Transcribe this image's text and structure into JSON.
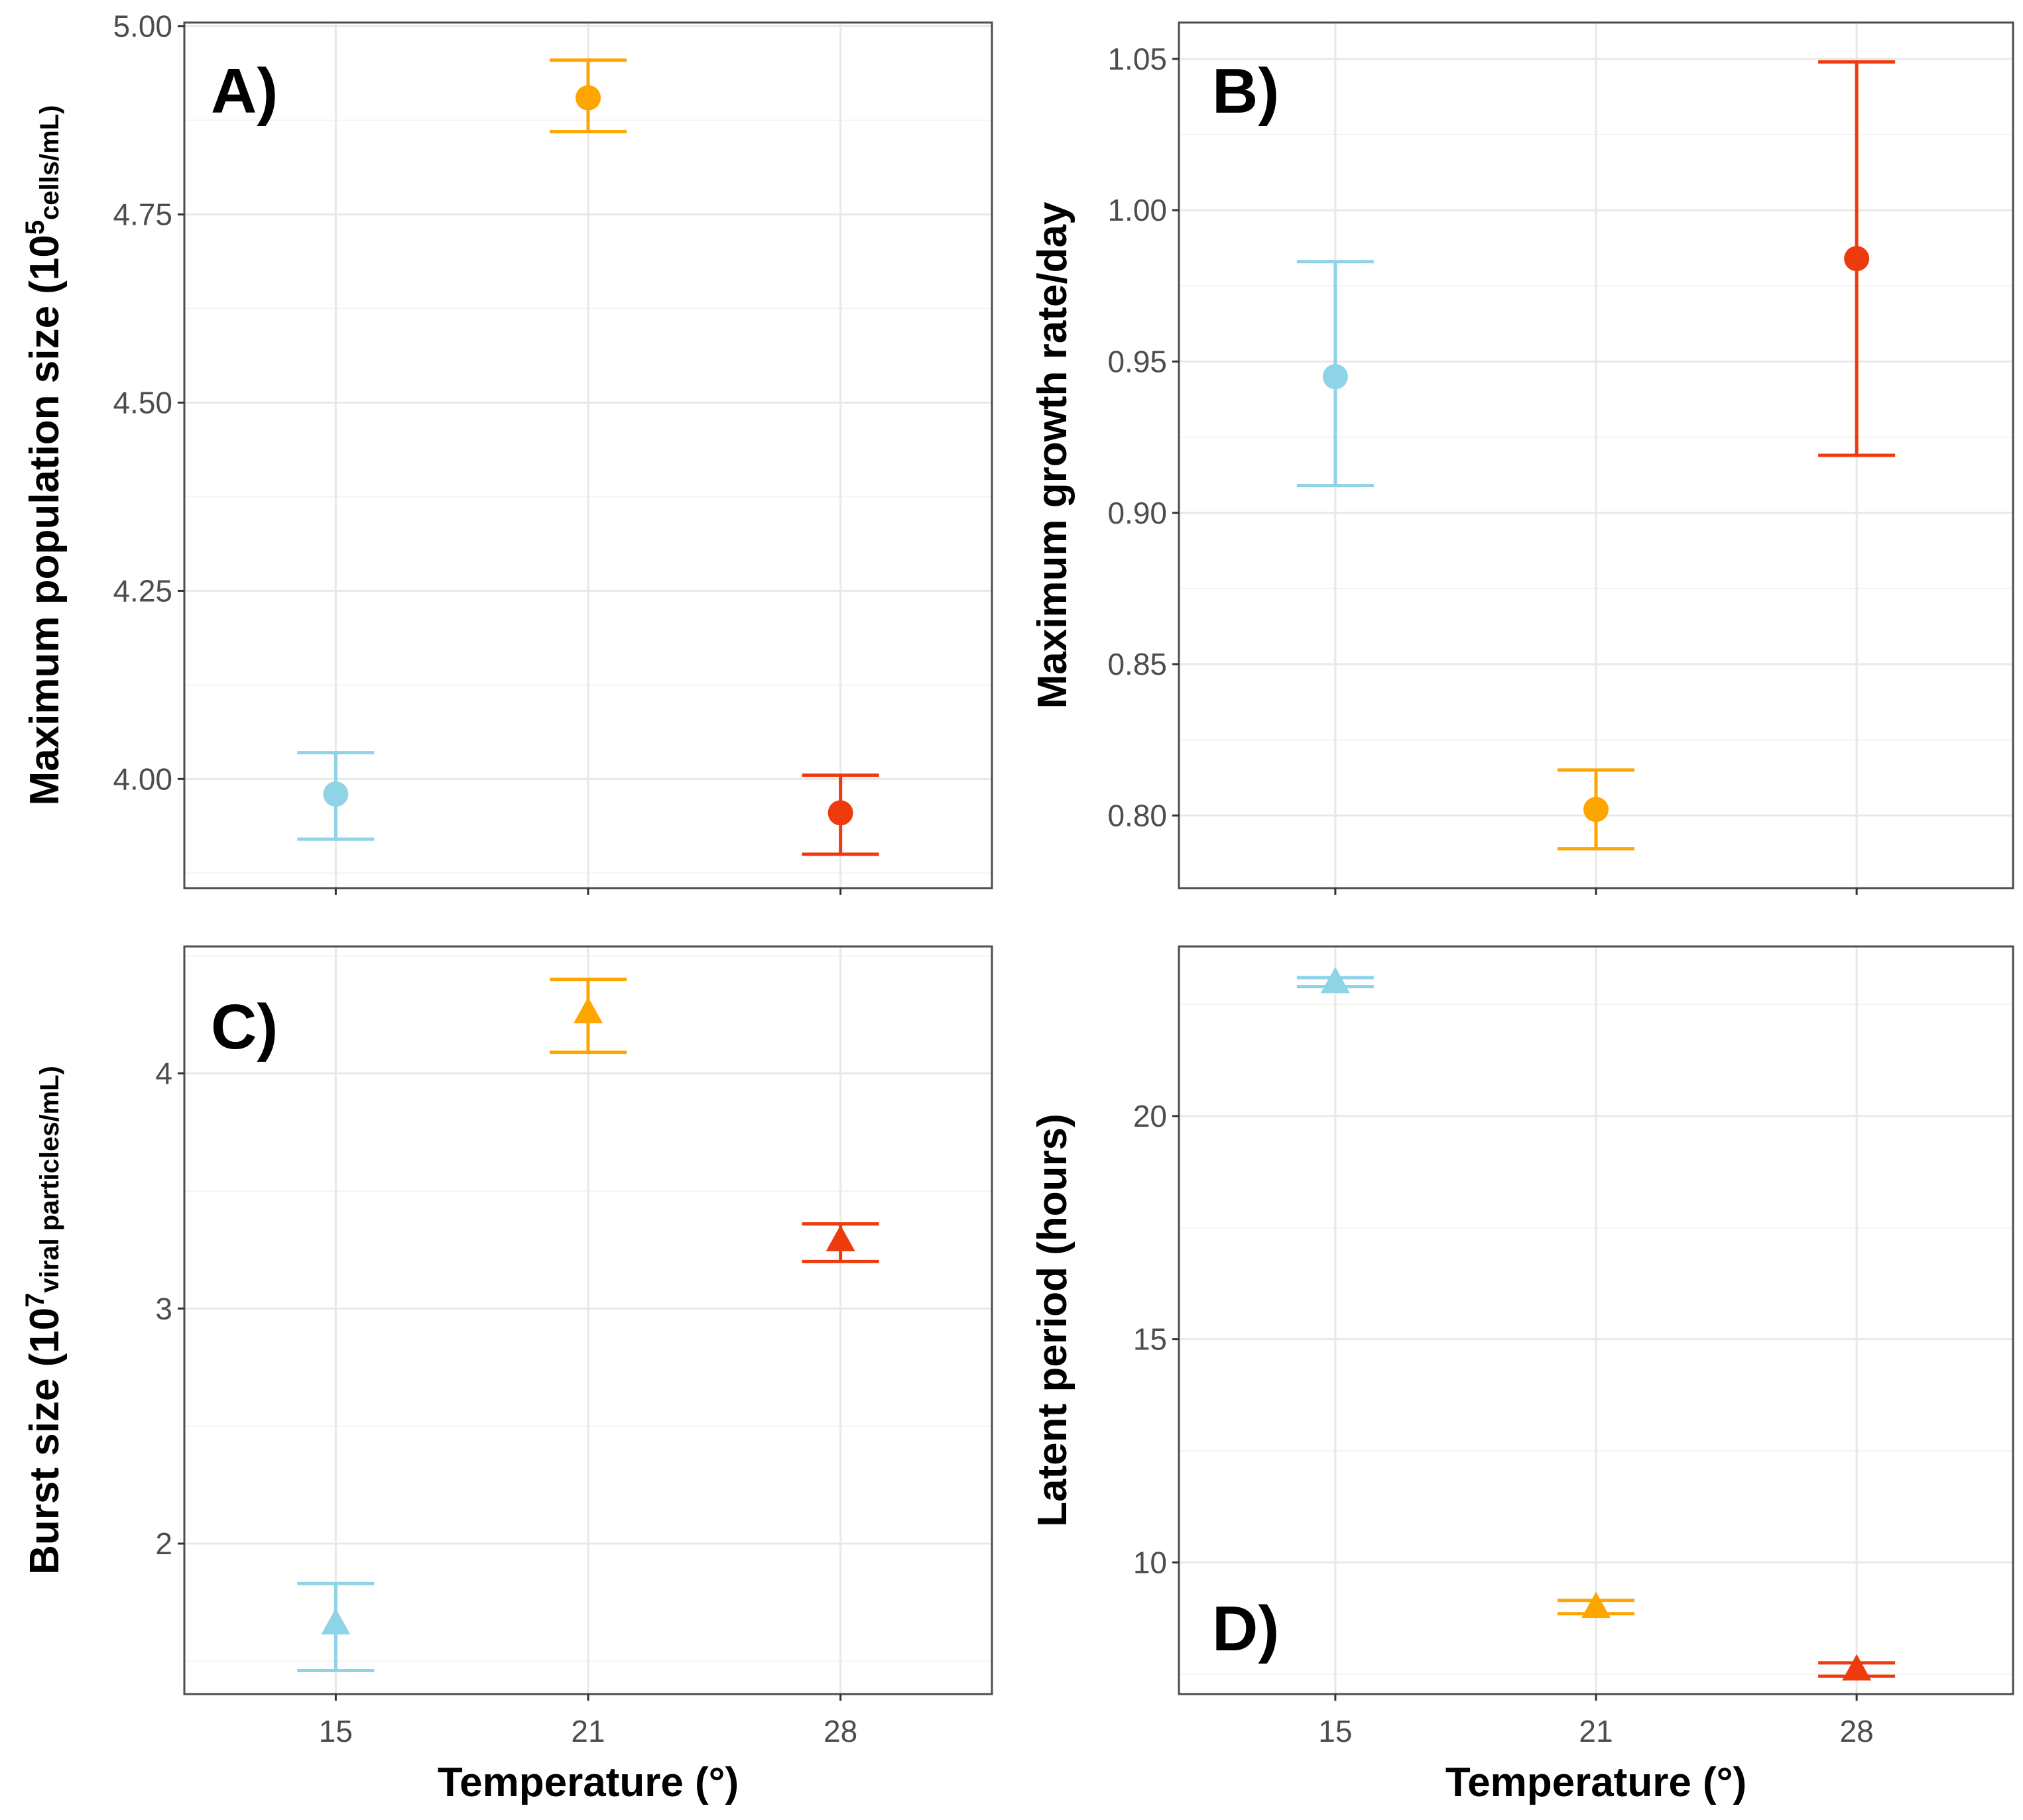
{
  "figure": {
    "colors": {
      "15": "#8FD3E6",
      "21": "#FFA500",
      "28": "#EE3B0E"
    },
    "grid_major": "#e8e8e8",
    "grid_minor": "#f3f3f3",
    "border": "#4d4d4d"
  },
  "chart_data": [
    {
      "type": "scatter",
      "panel_label": "A)",
      "marker": "circle",
      "title": "",
      "xlabel": "",
      "ylabel": {
        "pre": "Maximum population size (10",
        "sup": "5",
        "post": "cells/mL)"
      },
      "categories": [
        "15",
        "21",
        "28"
      ],
      "values": [
        3.98,
        4.905,
        3.955
      ],
      "lower": [
        3.92,
        4.86,
        3.9
      ],
      "upper": [
        4.035,
        4.955,
        4.005
      ],
      "yticks": [
        "4.00",
        "4.25",
        "4.50",
        "4.75",
        "5.00"
      ],
      "ylim": [
        3.855,
        5.005
      ],
      "grid": true
    },
    {
      "type": "scatter",
      "panel_label": "B)",
      "marker": "circle",
      "title": "",
      "xlabel": "",
      "ylabel": {
        "pre": "Maximum growth rate/day",
        "sup": "",
        "post": ""
      },
      "categories": [
        "15",
        "21",
        "28"
      ],
      "values": [
        0.945,
        0.802,
        0.984
      ],
      "lower": [
        0.909,
        0.789,
        0.919
      ],
      "upper": [
        0.983,
        0.815,
        1.049
      ],
      "yticks": [
        "0.80",
        "0.85",
        "0.90",
        "0.95",
        "1.00",
        "1.05"
      ],
      "ylim": [
        0.776,
        1.062
      ],
      "grid": true
    },
    {
      "type": "scatter",
      "panel_label": "C)",
      "marker": "triangle",
      "title": "",
      "xlabel": "Temperature (°)",
      "ylabel": {
        "pre": "Burst size (10",
        "sup": "7",
        "post": "viral particles/mL)"
      },
      "categories": [
        "15",
        "21",
        "28"
      ],
      "values": [
        1.66,
        4.26,
        3.29
      ],
      "lower": [
        1.46,
        4.09,
        3.2
      ],
      "upper": [
        1.83,
        4.4,
        3.36
      ],
      "yticks": [
        "2",
        "3",
        "4"
      ],
      "ylim": [
        1.36,
        4.54
      ],
      "grid": true
    },
    {
      "type": "scatter",
      "panel_label": "D)",
      "marker": "triangle",
      "title": "",
      "xlabel": "Temperature (°)",
      "ylabel": {
        "pre": "Latent period (hours)",
        "sup": "",
        "post": ""
      },
      "categories": [
        "15",
        "21",
        "28"
      ],
      "values": [
        23.0,
        9.0,
        7.6
      ],
      "lower": [
        22.9,
        8.85,
        7.45
      ],
      "upper": [
        23.1,
        9.15,
        7.75
      ],
      "yticks": [
        "10",
        "15",
        "20"
      ],
      "ylim": [
        7.05,
        23.8
      ],
      "grid": true
    }
  ]
}
